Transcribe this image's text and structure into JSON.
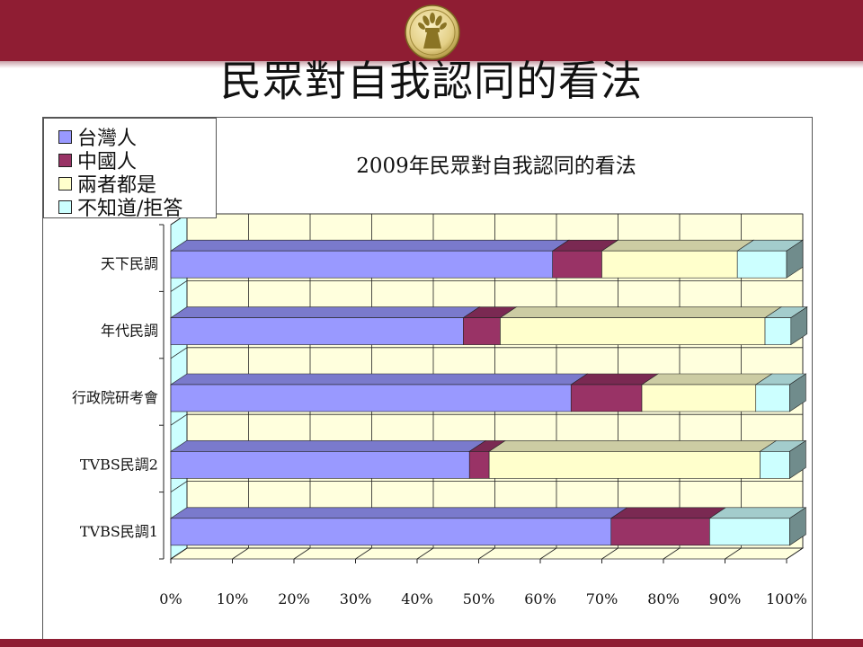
{
  "slide": {
    "title": "民眾對自我認同的看法",
    "banner_color": "#8f1d33"
  },
  "legend": {
    "items": [
      {
        "label": "台灣人",
        "color": "#9999ff"
      },
      {
        "label": "中國人",
        "color": "#993366"
      },
      {
        "label": "兩者都是",
        "color": "#ffffcc"
      },
      {
        "label": "不知道/拒答",
        "color": "#ccffff"
      }
    ]
  },
  "chart_data": {
    "type": "bar",
    "orientation": "horizontal",
    "stacked": "percent",
    "style": "3d",
    "title": "2009年民眾對自我認同的看法",
    "categories": [
      "天下民調",
      "年代民調",
      "行政院研考會",
      "TVBS民調2",
      "TVBS民調1"
    ],
    "series": [
      {
        "name": "台灣人",
        "color": "#9999ff",
        "values": [
          62,
          47.5,
          65,
          48.5,
          71.5
        ]
      },
      {
        "name": "中國人",
        "color": "#993366",
        "values": [
          8,
          6,
          11.5,
          3.2,
          16
        ]
      },
      {
        "name": "兩者都是",
        "color": "#ffffcc",
        "values": [
          22,
          43,
          18.5,
          44,
          0
        ]
      },
      {
        "name": "不知道/拒答",
        "color": "#ccffff",
        "values": [
          8,
          4.2,
          5.5,
          4.8,
          13
        ]
      }
    ],
    "x_ticks": [
      "0%",
      "10%",
      "20%",
      "30%",
      "40%",
      "50%",
      "60%",
      "70%",
      "80%",
      "90%",
      "100%"
    ],
    "xlim": [
      0,
      100
    ],
    "grid": true,
    "legend_position": "top-left",
    "wall_color": "#ffffdd",
    "side_wall_color": "#ccffff"
  }
}
